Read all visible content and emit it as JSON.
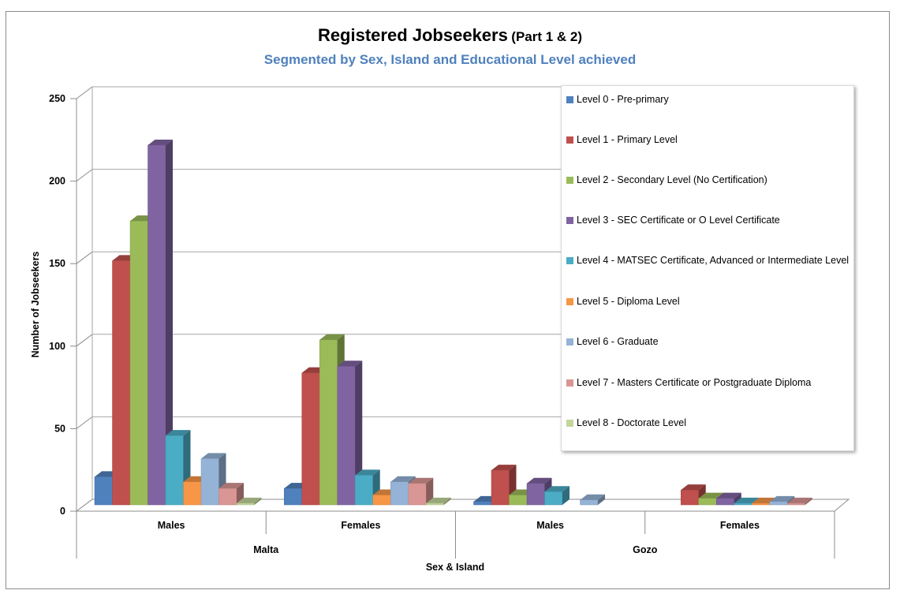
{
  "chart_data": {
    "type": "bar",
    "title": "Registered Jobseekers",
    "title_suffix": "(Part 1 & 2)",
    "subtitle": "Segmented by Sex, Island and Educational Level achieved",
    "xlabel": "Sex & Island",
    "ylabel": "Number of Jobseekers",
    "ylim": [
      0,
      250
    ],
    "yticks": [
      0,
      50,
      100,
      150,
      200,
      250
    ],
    "grid": true,
    "legend_position": "right",
    "categories": [
      "Males",
      "Females",
      "Males",
      "Females"
    ],
    "category_groups": [
      {
        "label": "Malta",
        "categories": [
          0,
          1
        ]
      },
      {
        "label": "Gozo",
        "categories": [
          2,
          3
        ]
      }
    ],
    "series": [
      {
        "name": "Level 0 - Pre-primary",
        "color": "#4f81bd",
        "values": [
          17,
          10,
          2,
          0
        ]
      },
      {
        "name": "Level 1 - Primary Level",
        "color": "#c0504d",
        "values": [
          148,
          80,
          21,
          9
        ]
      },
      {
        "name": "Level 2 - Secondary Level (No Certification)",
        "color": "#9bbb59",
        "values": [
          172,
          100,
          6,
          4
        ]
      },
      {
        "name": "Level 3 - SEC Certificate or O Level Certificate",
        "color": "#8064a2",
        "values": [
          218,
          84,
          13,
          4
        ]
      },
      {
        "name": "Level 4 - MATSEC Certificate, Advanced or Intermediate Level",
        "color": "#4bacc6",
        "values": [
          42,
          18,
          8,
          1
        ]
      },
      {
        "name": "Level 5 - Diploma Level",
        "color": "#f79646",
        "values": [
          14,
          6,
          0,
          1
        ]
      },
      {
        "name": "Level 6 - Graduate",
        "color": "#95b3d7",
        "values": [
          28,
          14,
          3,
          2
        ]
      },
      {
        "name": "Level 7 - Masters Certificate or Postgraduate Diploma",
        "color": "#d99694",
        "values": [
          10,
          13,
          0,
          1
        ]
      },
      {
        "name": "Level 8 - Doctorate Level",
        "color": "#c3d69b",
        "values": [
          1,
          1,
          0,
          0
        ]
      }
    ]
  }
}
